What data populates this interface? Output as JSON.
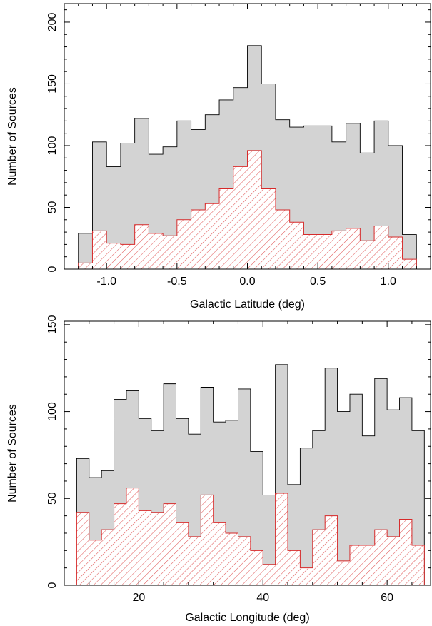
{
  "colors": {
    "total_fill": "#d3d3d3",
    "total_edge": "#000000",
    "subset_edge": "#d62a2a",
    "subset_hatch": "#e05a5a",
    "axis": "#000000"
  },
  "chart_data": [
    {
      "type": "histogram",
      "xlabel": "Galactic Latitude (deg)",
      "ylabel": "Number of Sources",
      "xlim": [
        -1.3,
        1.3
      ],
      "ylim": [
        0,
        215
      ],
      "xticks": [
        -1.0,
        -0.5,
        0.0,
        0.5,
        1.0
      ],
      "xtick_labels": [
        "-1.0",
        "-0.5",
        "0.0",
        "0.5",
        "1.0"
      ],
      "yticks": [
        0,
        50,
        100,
        150,
        200
      ],
      "ytick_labels": [
        "0",
        "50",
        "100",
        "150",
        "200"
      ],
      "bin_edges": [
        -1.2,
        -1.1,
        -1.0,
        -0.9,
        -0.8,
        -0.7,
        -0.6,
        -0.5,
        -0.4,
        -0.3,
        -0.2,
        -0.1,
        0.0,
        0.1,
        0.2,
        0.3,
        0.4,
        0.5,
        0.6,
        0.7,
        0.8,
        0.9,
        1.0,
        1.1,
        1.2
      ],
      "series": [
        {
          "style": "gray-filled",
          "values": [
            29,
            103,
            83,
            102,
            122,
            93,
            99,
            120,
            113,
            125,
            137,
            147,
            181,
            150,
            121,
            115,
            116,
            116,
            103,
            118,
            94,
            120,
            100,
            28
          ]
        },
        {
          "style": "red-hatched",
          "values": [
            5,
            31,
            21,
            20,
            36,
            29,
            27,
            40,
            48,
            53,
            65,
            83,
            96,
            65,
            48,
            38,
            28,
            28,
            31,
            33,
            23,
            35,
            26,
            8
          ]
        }
      ]
    },
    {
      "type": "histogram",
      "xlabel": "Galactic Longitude (deg)",
      "ylabel": "Number of Sources",
      "xlim": [
        8,
        67
      ],
      "ylim": [
        0,
        152
      ],
      "xticks": [
        20,
        40,
        60
      ],
      "xtick_labels": [
        "20",
        "40",
        "60"
      ],
      "yticks": [
        0,
        50,
        100,
        150
      ],
      "ytick_labels": [
        "0",
        "50",
        "100",
        "150"
      ],
      "bin_edges": [
        10,
        12,
        14,
        16,
        18,
        20,
        22,
        24,
        26,
        28,
        30,
        32,
        34,
        36,
        38,
        40,
        42,
        44,
        46,
        48,
        50,
        52,
        54,
        56,
        58,
        60,
        62,
        64,
        66
      ],
      "series": [
        {
          "style": "gray-filled",
          "values": [
            73,
            62,
            66,
            107,
            112,
            96,
            89,
            116,
            96,
            87,
            114,
            94,
            95,
            113,
            77,
            52,
            127,
            58,
            79,
            89,
            125,
            100,
            110,
            86,
            119,
            101,
            108,
            89
          ]
        },
        {
          "style": "red-hatched",
          "values": [
            42,
            26,
            32,
            47,
            56,
            43,
            42,
            47,
            36,
            28,
            52,
            36,
            30,
            28,
            20,
            12,
            53,
            20,
            10,
            32,
            40,
            14,
            23,
            23,
            32,
            28,
            38,
            23
          ]
        }
      ]
    }
  ]
}
